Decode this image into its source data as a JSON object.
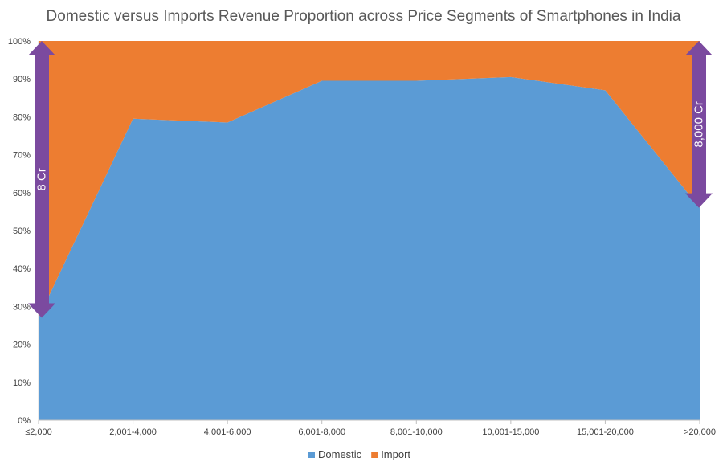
{
  "chart_data": {
    "type": "area",
    "stacked": true,
    "title": "Domestic versus Imports Revenue Proportion across Price Segments of Smartphones in India",
    "xlabel": "",
    "ylabel": "",
    "categories": [
      "≤2,000",
      "2,001-4,000",
      "4,001-6,000",
      "6,001-8,000",
      "8,001-10,000",
      "10,001-15,000",
      "15,001-20,000",
      ">20,000"
    ],
    "series": [
      {
        "name": "Domestic",
        "color": "#5B9BD5",
        "values": [
          27,
          79.5,
          78.5,
          89.5,
          89.5,
          90.5,
          87,
          56
        ]
      },
      {
        "name": "Import",
        "color": "#ED7D31",
        "values": [
          73,
          20.5,
          21.5,
          10.5,
          10.5,
          9.5,
          13,
          44
        ]
      }
    ],
    "yaxis": {
      "min": 0,
      "max": 100,
      "step": 10,
      "format": "percent",
      "tick_labels": [
        "0%",
        "10%",
        "20%",
        "30%",
        "40%",
        "50%",
        "60%",
        "70%",
        "80%",
        "90%",
        "100%"
      ]
    },
    "grid": false,
    "legend": {
      "position": "bottom",
      "items": [
        "Domestic",
        "Import"
      ]
    },
    "annotations": [
      {
        "text": "8 Cr",
        "category_index": 0,
        "from": 27,
        "to": 100,
        "color": "#7B4A9F"
      },
      {
        "text": "8,000 Cr",
        "category_index": 7,
        "from": 56,
        "to": 100,
        "color": "#7B4A9F"
      }
    ]
  }
}
